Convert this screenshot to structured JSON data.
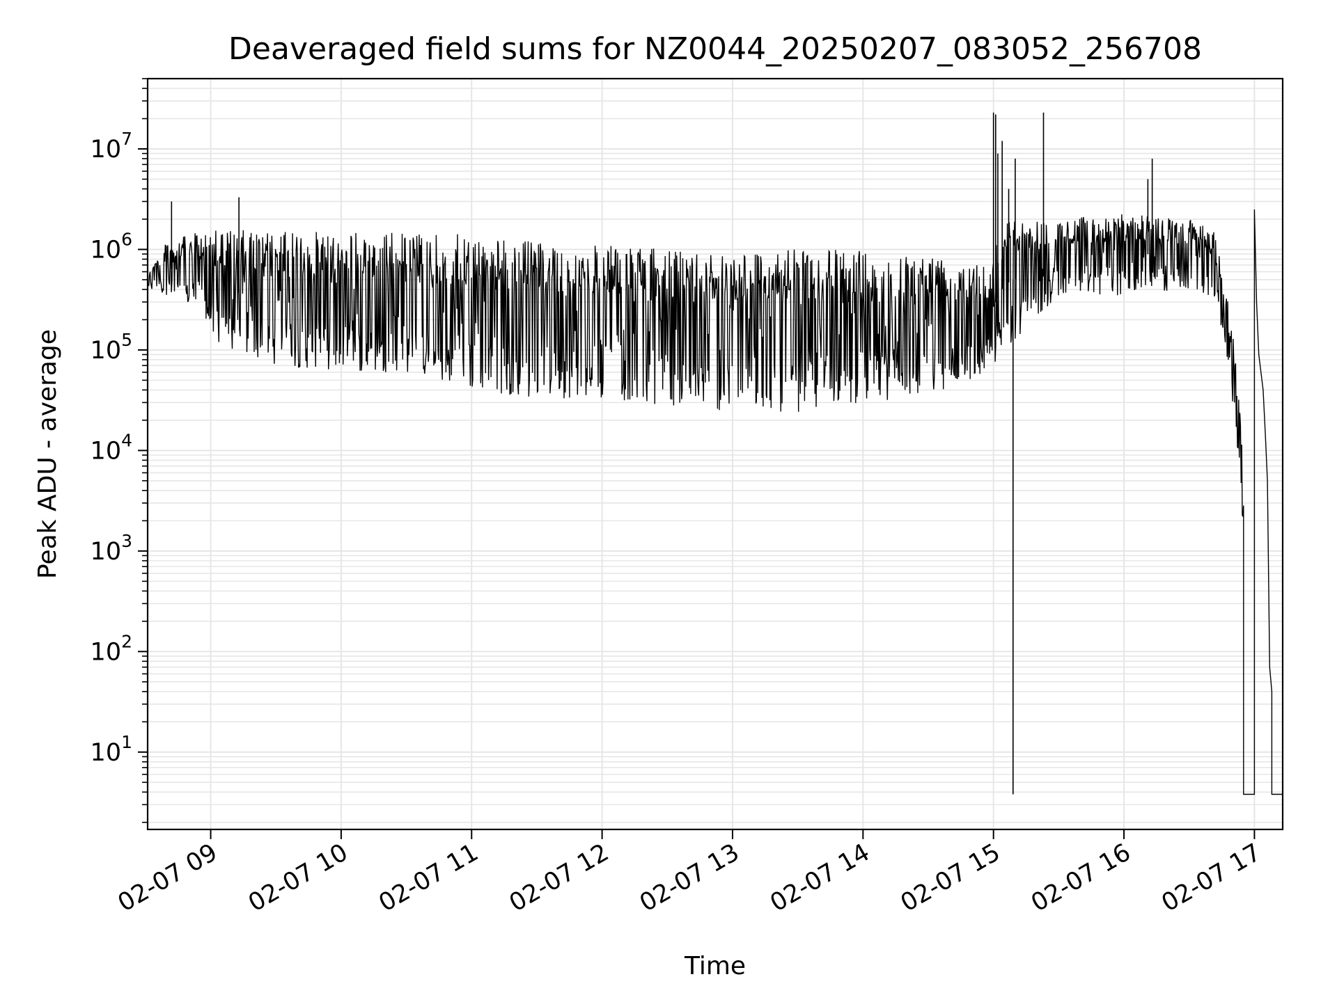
{
  "chart_data": {
    "type": "line",
    "title": "Deaveraged field sums for NZ0044_20250207_083052_256708",
    "xlabel": "Time",
    "ylabel": "Peak ADU - average",
    "y_scale": "log",
    "ylim": [
      1.7,
      50000000
    ],
    "xlim": [
      "02-07 08:31",
      "02-07 17:13"
    ],
    "grid": true,
    "line_color": "#000000",
    "grid_color": "#e6e6e6",
    "x_ticks": [
      {
        "t": "02-07 09:00",
        "label": "02-07 09"
      },
      {
        "t": "02-07 10:00",
        "label": "02-07 10"
      },
      {
        "t": "02-07 11:00",
        "label": "02-07 11"
      },
      {
        "t": "02-07 12:00",
        "label": "02-07 12"
      },
      {
        "t": "02-07 13:00",
        "label": "02-07 13"
      },
      {
        "t": "02-07 14:00",
        "label": "02-07 14"
      },
      {
        "t": "02-07 15:00",
        "label": "02-07 15"
      },
      {
        "t": "02-07 16:00",
        "label": "02-07 16"
      },
      {
        "t": "02-07 17:00",
        "label": "02-07 17"
      }
    ],
    "y_ticks": [
      {
        "value": 10,
        "base": "10",
        "exp": "1"
      },
      {
        "value": 100,
        "base": "10",
        "exp": "2"
      },
      {
        "value": 1000,
        "base": "10",
        "exp": "3"
      },
      {
        "value": 10000,
        "base": "10",
        "exp": "4"
      },
      {
        "value": 100000,
        "base": "10",
        "exp": "5"
      },
      {
        "value": 1000000,
        "base": "10",
        "exp": "6"
      },
      {
        "value": 10000000,
        "base": "10",
        "exp": "7"
      }
    ],
    "series": [
      {
        "envelope": [
          {
            "t": "02-07 08:31",
            "low": 400000,
            "high": 600000
          },
          {
            "t": "02-07 08:40",
            "low": 350000,
            "high": 1200000
          },
          {
            "t": "02-07 08:55",
            "low": 250000,
            "high": 1500000
          },
          {
            "t": "02-07 09:05",
            "low": 100000,
            "high": 1600000
          },
          {
            "t": "02-07 09:30",
            "low": 70000,
            "high": 1500000
          },
          {
            "t": "02-07 10:00",
            "low": 60000,
            "high": 1500000
          },
          {
            "t": "02-07 10:30",
            "low": 60000,
            "high": 1500000
          },
          {
            "t": "02-07 11:00",
            "low": 40000,
            "high": 1400000
          },
          {
            "t": "02-07 11:30",
            "low": 33000,
            "high": 1200000
          },
          {
            "t": "02-07 12:00",
            "low": 33000,
            "high": 1100000
          },
          {
            "t": "02-07 12:30",
            "low": 28000,
            "high": 1000000
          },
          {
            "t": "02-07 13:00",
            "low": 24000,
            "high": 1000000
          },
          {
            "t": "02-07 13:30",
            "low": 24000,
            "high": 1000000
          },
          {
            "t": "02-07 14:00",
            "low": 30000,
            "high": 1000000
          },
          {
            "t": "02-07 14:30",
            "low": 35000,
            "high": 900000
          },
          {
            "t": "02-07 14:58",
            "low": 60000,
            "high": 800000
          },
          {
            "t": "02-07 15:05",
            "low": 100000,
            "high": 2000000
          },
          {
            "t": "02-07 15:30",
            "low": 350000,
            "high": 2000000
          },
          {
            "t": "02-07 16:00",
            "low": 350000,
            "high": 2300000
          },
          {
            "t": "02-07 16:30",
            "low": 400000,
            "high": 2000000
          },
          {
            "t": "02-07 16:42",
            "low": 300000,
            "high": 1500000
          },
          {
            "t": "02-07 16:47",
            "low": 100000,
            "high": 400000
          },
          {
            "t": "02-07 16:51",
            "low": 20000,
            "high": 100000
          },
          {
            "t": "02-07 16:54",
            "low": 3000,
            "high": 20000
          },
          {
            "t": "02-07 16:55",
            "low": 1500,
            "high": 5000
          }
        ],
        "segments": [
          [
            [
              "02-07 16:55",
              1500
            ],
            [
              "02-07 16:55",
              3.8
            ],
            [
              "02-07 17:00",
              3.8
            ],
            [
              "02-07 17:00",
              2500000
            ],
            [
              "02-07 17:01",
              300000
            ],
            [
              "02-07 17:02",
              90000
            ],
            [
              "02-07 17:04",
              40000
            ],
            [
              "02-07 17:05",
              15000
            ],
            [
              "02-07 17:06",
              5000
            ],
            [
              "02-07 17:07",
              70
            ],
            [
              "02-07 17:08",
              40
            ],
            [
              "02-07 17:08",
              3.8
            ],
            [
              "02-07 17:13",
              3.8
            ]
          ]
        ],
        "spikes": [
          {
            "t": "02-07 08:42",
            "value": 3000000
          },
          {
            "t": "02-07 09:13",
            "value": 3300000
          },
          {
            "t": "02-07 15:00",
            "value": 23000000
          },
          {
            "t": "02-07 15:01",
            "value": 22000000
          },
          {
            "t": "02-07 15:02",
            "value": 9000000
          },
          {
            "t": "02-07 15:04",
            "value": 12000000
          },
          {
            "t": "02-07 15:07",
            "value": 4000000
          },
          {
            "t": "02-07 15:09",
            "value": 3.8
          },
          {
            "t": "02-07 15:10",
            "value": 8000000
          },
          {
            "t": "02-07 15:23",
            "value": 23000000
          },
          {
            "t": "02-07 16:11",
            "value": 5000000
          },
          {
            "t": "02-07 16:13",
            "value": 8000000
          }
        ]
      }
    ]
  }
}
